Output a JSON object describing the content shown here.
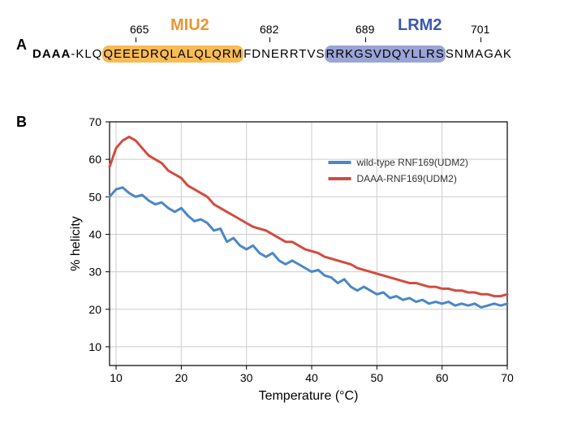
{
  "panelA": {
    "label": "A",
    "miu2": {
      "text": "MIU2",
      "color": "#eb9730",
      "start": 665,
      "end": 682,
      "highlight_color": "#f7b444"
    },
    "lrm2": {
      "text": "LRM2",
      "color": "#3a59b0",
      "start": 689,
      "end": 701,
      "highlight_color": "#909ad1"
    },
    "daaa_prefix": "DAAA",
    "seq_before_miu2": "-KLQ",
    "seq_miu2": "QEEEDRQLALQLQRM",
    "seq_between": "FDNERRTVS",
    "seq_lrm2": "RRKGSVDQYLLRS",
    "seq_after": "SNMAGAK",
    "positions": [
      "665",
      "682",
      "689",
      "701"
    ]
  },
  "panelB": {
    "label": "B",
    "chart": {
      "type": "line",
      "xlabel": "Temperature (°C)",
      "ylabel": "% helicity",
      "xlim": [
        9,
        70
      ],
      "ylim": [
        5,
        70
      ],
      "xticks": [
        10,
        20,
        30,
        40,
        50,
        60,
        70
      ],
      "yticks": [
        10,
        20,
        30,
        40,
        50,
        60,
        70
      ],
      "grid_color": "#cccccc",
      "background_color": "#ffffff",
      "line_width": 3,
      "series": [
        {
          "name": "wild-type RNF169(UDM2)",
          "color": "#4a87c7",
          "x": [
            9,
            10,
            11,
            12,
            13,
            14,
            15,
            16,
            17,
            18,
            19,
            20,
            21,
            22,
            23,
            24,
            25,
            26,
            27,
            28,
            29,
            30,
            31,
            32,
            33,
            34,
            35,
            36,
            37,
            38,
            39,
            40,
            41,
            42,
            43,
            44,
            45,
            46,
            47,
            48,
            49,
            50,
            51,
            52,
            53,
            54,
            55,
            56,
            57,
            58,
            59,
            60,
            61,
            62,
            63,
            64,
            65,
            66,
            67,
            68,
            69,
            70
          ],
          "y": [
            50,
            52,
            52.5,
            51,
            50,
            50.5,
            49,
            48,
            48.5,
            47,
            46,
            47,
            45,
            43.5,
            44,
            43,
            41,
            41.5,
            38,
            39,
            37,
            36,
            37,
            35,
            34,
            35,
            33,
            32,
            33,
            32,
            31,
            30,
            30.5,
            29,
            28.5,
            27,
            28,
            26,
            25,
            26,
            25,
            24,
            24.5,
            23,
            23.5,
            22.5,
            23,
            22,
            22.5,
            21.5,
            22,
            21.5,
            22,
            21,
            21.5,
            21,
            21.5,
            20.5,
            21,
            21.5,
            21,
            21.5
          ]
        },
        {
          "name": "DAAA-RNF169(UDM2)",
          "color": "#d34b3f",
          "x": [
            9,
            10,
            11,
            12,
            13,
            14,
            15,
            16,
            17,
            18,
            19,
            20,
            21,
            22,
            23,
            24,
            25,
            26,
            27,
            28,
            29,
            30,
            31,
            32,
            33,
            34,
            35,
            36,
            37,
            38,
            39,
            40,
            41,
            42,
            43,
            44,
            45,
            46,
            47,
            48,
            49,
            50,
            51,
            52,
            53,
            54,
            55,
            56,
            57,
            58,
            59,
            60,
            61,
            62,
            63,
            64,
            65,
            66,
            67,
            68,
            69,
            70
          ],
          "y": [
            58,
            63,
            65,
            66,
            65,
            63,
            61,
            60,
            59,
            57,
            56,
            55,
            53,
            52,
            51,
            50,
            48,
            47,
            46,
            45,
            44,
            43,
            42,
            41.5,
            41,
            40,
            39,
            38,
            38,
            37,
            36,
            35.5,
            35,
            34,
            33.5,
            33,
            32.5,
            32,
            31,
            30.5,
            30,
            29.5,
            29,
            28.5,
            28,
            27.5,
            27,
            27,
            26.5,
            26,
            26,
            25.5,
            25.5,
            25,
            25,
            24.5,
            24.5,
            24,
            24,
            23.5,
            23.5,
            24
          ]
        }
      ]
    }
  }
}
